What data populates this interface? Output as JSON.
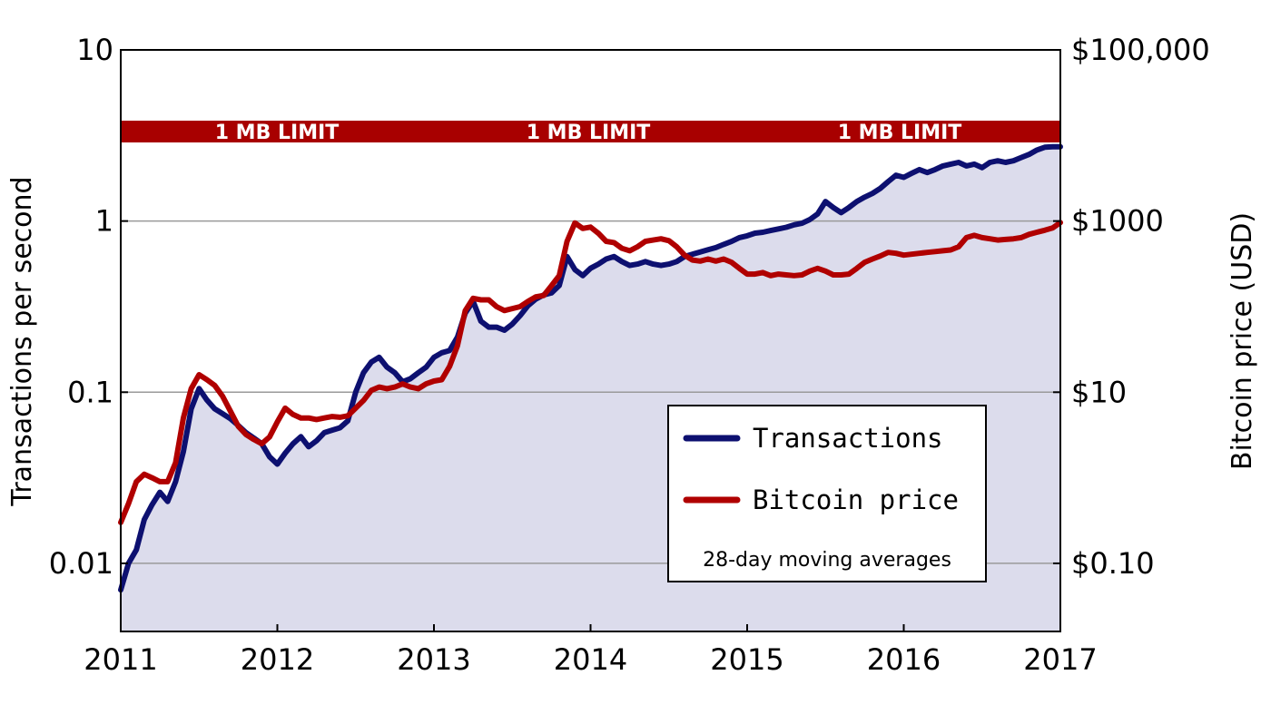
{
  "chart_data": {
    "type": "line",
    "title": "",
    "xlabel": "",
    "ylabel_left": "Transactions per second",
    "ylabel_right": "Bitcoin price (USD)",
    "x_range": [
      2011,
      2017
    ],
    "x_ticks": [
      "2011",
      "2012",
      "2013",
      "2014",
      "2015",
      "2016",
      "2017"
    ],
    "y_left": {
      "scale": "log",
      "range": [
        0.004,
        10
      ],
      "ticks": [
        "10",
        "1",
        "0.1",
        "0.01"
      ],
      "tick_values": [
        10,
        1,
        0.1,
        0.01
      ]
    },
    "y_right": {
      "scale": "log",
      "range": [
        0.016,
        100000
      ],
      "ticks": [
        "$100,000",
        "$1000",
        "$10",
        "$0.10"
      ],
      "tick_values": [
        100000,
        1000,
        10,
        0.1
      ]
    },
    "grid": true,
    "band": {
      "label": "1 MB LIMIT",
      "repeats": 3,
      "color": "#a80000"
    },
    "legend": {
      "position": "bottom-right",
      "note": "28-day moving averages"
    },
    "series": [
      {
        "name": "Transactions",
        "axis": "left",
        "color": "#0d1070",
        "fill": "#dcdcec",
        "x": [
          2011.0,
          2011.05,
          2011.1,
          2011.15,
          2011.2,
          2011.25,
          2011.3,
          2011.35,
          2011.4,
          2011.45,
          2011.5,
          2011.55,
          2011.6,
          2011.65,
          2011.7,
          2011.75,
          2011.8,
          2011.85,
          2011.9,
          2011.95,
          2012.0,
          2012.05,
          2012.1,
          2012.15,
          2012.2,
          2012.25,
          2012.3,
          2012.35,
          2012.4,
          2012.45,
          2012.5,
          2012.55,
          2012.6,
          2012.65,
          2012.7,
          2012.75,
          2012.8,
          2012.85,
          2012.9,
          2012.95,
          2013.0,
          2013.05,
          2013.1,
          2013.15,
          2013.2,
          2013.25,
          2013.3,
          2013.35,
          2013.4,
          2013.45,
          2013.5,
          2013.55,
          2013.6,
          2013.65,
          2013.7,
          2013.75,
          2013.8,
          2013.85,
          2013.9,
          2013.95,
          2014.0,
          2014.05,
          2014.1,
          2014.15,
          2014.2,
          2014.25,
          2014.3,
          2014.35,
          2014.4,
          2014.45,
          2014.5,
          2014.55,
          2014.6,
          2014.65,
          2014.7,
          2014.75,
          2014.8,
          2014.85,
          2014.9,
          2014.95,
          2015.0,
          2015.05,
          2015.1,
          2015.15,
          2015.2,
          2015.25,
          2015.3,
          2015.35,
          2015.4,
          2015.45,
          2015.5,
          2015.55,
          2015.6,
          2015.65,
          2015.7,
          2015.75,
          2015.8,
          2015.85,
          2015.9,
          2015.95,
          2016.0,
          2016.05,
          2016.1,
          2016.15,
          2016.2,
          2016.25,
          2016.3,
          2016.35,
          2016.4,
          2016.45,
          2016.5,
          2016.55,
          2016.6,
          2016.65,
          2016.7,
          2016.75,
          2016.8,
          2016.85,
          2016.9,
          2016.95,
          2017.0
        ],
        "values": [
          0.007,
          0.01,
          0.012,
          0.018,
          0.022,
          0.026,
          0.023,
          0.03,
          0.045,
          0.08,
          0.105,
          0.09,
          0.08,
          0.075,
          0.07,
          0.064,
          0.058,
          0.054,
          0.05,
          0.042,
          0.038,
          0.044,
          0.05,
          0.055,
          0.048,
          0.052,
          0.058,
          0.06,
          0.062,
          0.068,
          0.1,
          0.13,
          0.15,
          0.16,
          0.14,
          0.13,
          0.115,
          0.12,
          0.13,
          0.14,
          0.16,
          0.17,
          0.175,
          0.21,
          0.29,
          0.34,
          0.26,
          0.24,
          0.24,
          0.23,
          0.25,
          0.28,
          0.32,
          0.35,
          0.37,
          0.38,
          0.42,
          0.62,
          0.52,
          0.48,
          0.53,
          0.56,
          0.6,
          0.62,
          0.58,
          0.55,
          0.56,
          0.58,
          0.56,
          0.55,
          0.56,
          0.58,
          0.62,
          0.64,
          0.66,
          0.68,
          0.7,
          0.73,
          0.76,
          0.8,
          0.82,
          0.85,
          0.86,
          0.88,
          0.9,
          0.92,
          0.95,
          0.97,
          1.02,
          1.1,
          1.3,
          1.2,
          1.12,
          1.2,
          1.3,
          1.38,
          1.45,
          1.55,
          1.7,
          1.85,
          1.8,
          1.9,
          2.0,
          1.92,
          2.0,
          2.1,
          2.15,
          2.2,
          2.1,
          2.15,
          2.05,
          2.2,
          2.25,
          2.2,
          2.25,
          2.35,
          2.45,
          2.6,
          2.7,
          2.72,
          2.72
        ]
      },
      {
        "name": "Bitcoin price",
        "axis": "right",
        "color": "#b00000",
        "x": [
          2011.0,
          2011.05,
          2011.1,
          2011.15,
          2011.2,
          2011.25,
          2011.3,
          2011.35,
          2011.4,
          2011.45,
          2011.5,
          2011.55,
          2011.6,
          2011.65,
          2011.7,
          2011.75,
          2011.8,
          2011.85,
          2011.9,
          2011.95,
          2012.0,
          2012.05,
          2012.1,
          2012.15,
          2012.2,
          2012.25,
          2012.3,
          2012.35,
          2012.4,
          2012.45,
          2012.5,
          2012.55,
          2012.6,
          2012.65,
          2012.7,
          2012.75,
          2012.8,
          2012.85,
          2012.9,
          2012.95,
          2013.0,
          2013.05,
          2013.1,
          2013.15,
          2013.2,
          2013.25,
          2013.3,
          2013.35,
          2013.4,
          2013.45,
          2013.5,
          2013.55,
          2013.6,
          2013.65,
          2013.7,
          2013.75,
          2013.8,
          2013.85,
          2013.9,
          2013.95,
          2014.0,
          2014.05,
          2014.1,
          2014.15,
          2014.2,
          2014.25,
          2014.3,
          2014.35,
          2014.4,
          2014.45,
          2014.5,
          2014.55,
          2014.6,
          2014.65,
          2014.7,
          2014.75,
          2014.8,
          2014.85,
          2014.9,
          2014.95,
          2015.0,
          2015.05,
          2015.1,
          2015.15,
          2015.2,
          2015.25,
          2015.3,
          2015.35,
          2015.4,
          2015.45,
          2015.5,
          2015.55,
          2015.6,
          2015.65,
          2015.7,
          2015.75,
          2015.8,
          2015.85,
          2015.9,
          2015.95,
          2016.0,
          2016.05,
          2016.1,
          2016.15,
          2016.2,
          2016.25,
          2016.3,
          2016.35,
          2016.4,
          2016.45,
          2016.5,
          2016.55,
          2016.6,
          2016.65,
          2016.7,
          2016.75,
          2016.8,
          2016.85,
          2016.9,
          2016.95,
          2017.0
        ],
        "values": [
          0.3,
          0.5,
          0.9,
          1.1,
          1.0,
          0.9,
          0.9,
          1.5,
          5.0,
          11.0,
          16.0,
          14.0,
          12.0,
          9.0,
          6.0,
          4.0,
          3.2,
          2.8,
          2.5,
          3.0,
          4.5,
          6.5,
          5.5,
          5.0,
          5.0,
          4.8,
          5.0,
          5.2,
          5.1,
          5.3,
          6.5,
          8.0,
          10.5,
          11.5,
          11.0,
          11.5,
          12.5,
          11.5,
          11.0,
          12.5,
          13.5,
          14.0,
          20.0,
          35.0,
          90.0,
          125.0,
          120.0,
          120.0,
          100.0,
          90.0,
          95.0,
          100.0,
          115.0,
          130.0,
          135.0,
          175.0,
          230.0,
          580.0,
          950.0,
          820.0,
          850.0,
          720.0,
          580.0,
          560.0,
          480.0,
          450.0,
          500.0,
          580.0,
          600.0,
          620.0,
          590.0,
          500.0,
          400.0,
          350.0,
          340.0,
          360.0,
          340.0,
          360.0,
          330.0,
          280.0,
          240.0,
          240.0,
          250.0,
          230.0,
          240.0,
          235.0,
          230.0,
          235.0,
          260.0,
          280.0,
          260.0,
          235.0,
          235.0,
          240.0,
          280.0,
          330.0,
          360.0,
          390.0,
          430.0,
          420.0,
          400.0,
          410.0,
          420.0,
          430.0,
          440.0,
          450.0,
          460.0,
          500.0,
          640.0,
          680.0,
          640.0,
          620.0,
          600.0,
          610.0,
          620.0,
          640.0,
          700.0,
          740.0,
          780.0,
          830.0,
          960.0
        ]
      }
    ]
  }
}
